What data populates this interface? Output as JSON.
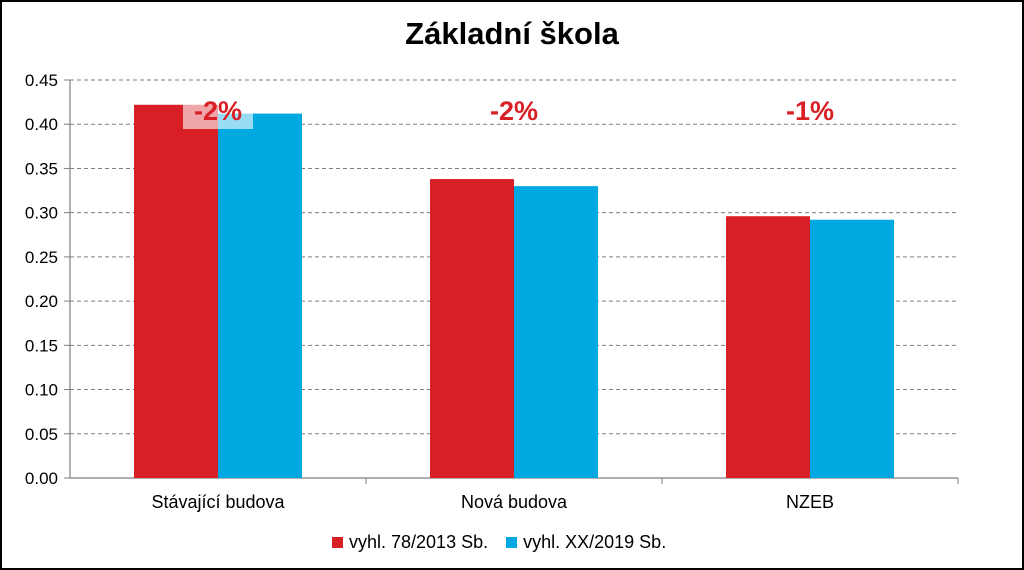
{
  "chart_data": {
    "type": "bar",
    "title": "Základní škola",
    "categories": [
      "Stávající budova",
      "Nová budova",
      "NZEB"
    ],
    "series": [
      {
        "name": "vyhl. 78/2013 Sb.",
        "color": "#d91f26",
        "values": [
          0.422,
          0.338,
          0.296
        ]
      },
      {
        "name": "vyhl. XX/2019 Sb.",
        "color": "#00a8e1",
        "values": [
          0.412,
          0.33,
          0.292
        ]
      }
    ],
    "annotations": [
      "-2%",
      "-2%",
      "-1%"
    ],
    "ylim": [
      0,
      0.45
    ],
    "yticks": [
      "0.00",
      "0.05",
      "0.10",
      "0.15",
      "0.20",
      "0.25",
      "0.30",
      "0.35",
      "0.40",
      "0.45"
    ],
    "grid": true,
    "legend": "bottom"
  }
}
